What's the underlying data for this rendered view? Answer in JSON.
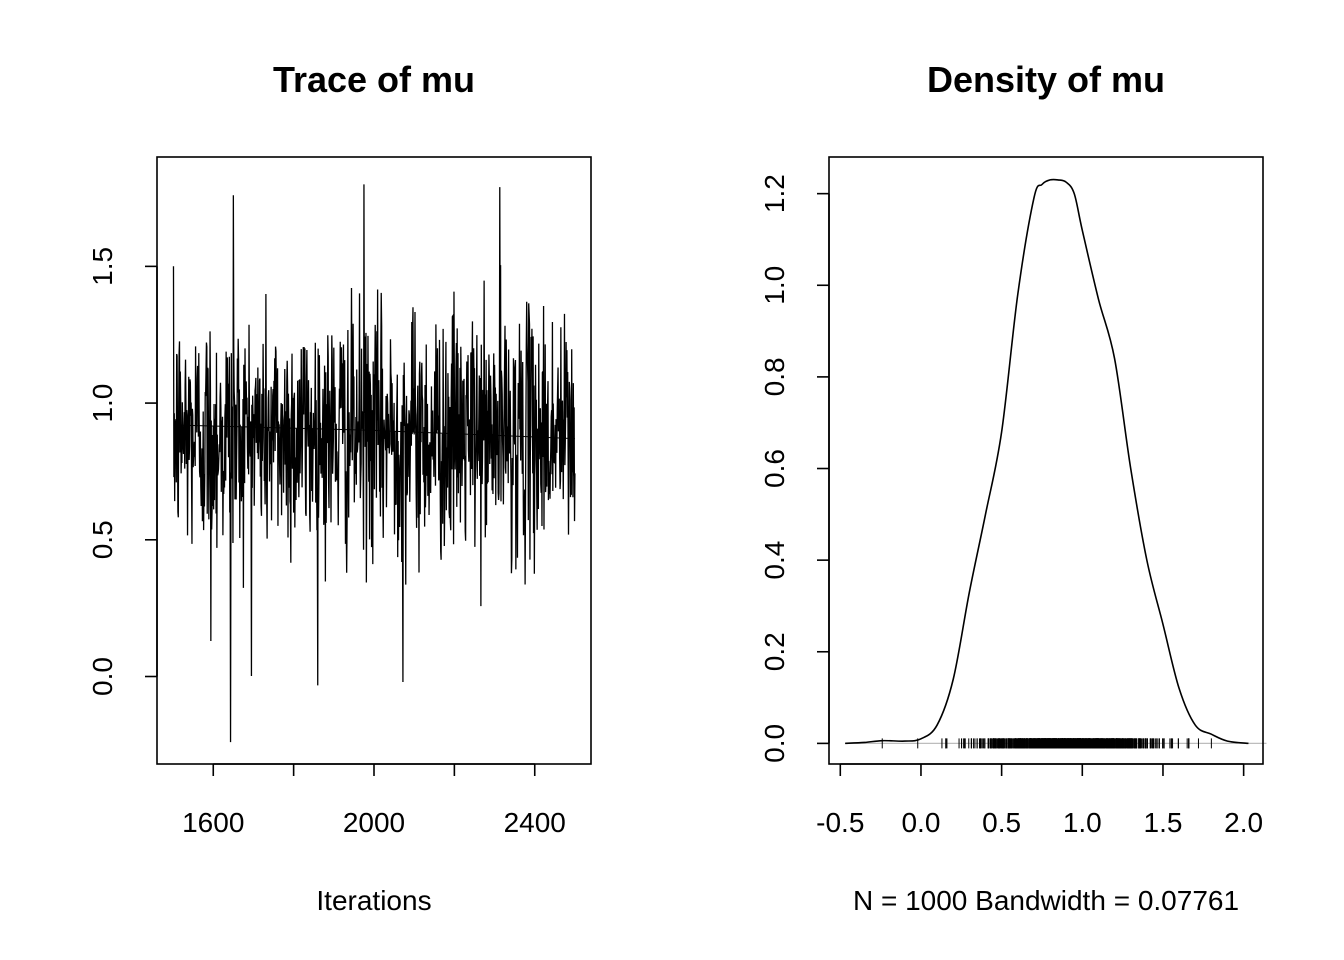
{
  "chart_data": [
    {
      "type": "line",
      "title": "Trace of mu",
      "xlabel": "Iterations",
      "ylabel": "",
      "xlim": [
        1460,
        2540
      ],
      "ylim": [
        -0.32,
        1.9
      ],
      "x_ticks": [
        1600,
        1800,
        2000,
        2200,
        2400
      ],
      "x_tick_labels": [
        "1600",
        "",
        "2000",
        "",
        "2400"
      ],
      "y_ticks": [
        0.0,
        0.5,
        1.0,
        1.5
      ],
      "y_tick_labels": [
        "0.0",
        "0.5",
        "1.0",
        "1.5"
      ],
      "grid": false,
      "series": [
        {
          "name": "",
          "iterations": [
            1501,
            2500
          ],
          "approx_mean": 0.89,
          "approx_sd": 0.22,
          "approx_min": -0.24,
          "approx_max": 1.8
        },
        {
          "name": "",
          "x": [
            1501,
            2000,
            2500
          ],
          "y": [
            0.92,
            0.9,
            0.87
          ]
        }
      ]
    },
    {
      "type": "line",
      "title": "Density of mu",
      "xlabel": "N = 1000   Bandwidth = 0.07761",
      "ylabel": "",
      "xlim": [
        -0.57,
        2.12
      ],
      "ylim": [
        -0.045,
        1.28
      ],
      "x_ticks": [
        -0.5,
        0.0,
        0.5,
        1.0,
        1.5,
        2.0
      ],
      "x_tick_labels": [
        "-0.5",
        "0.0",
        "0.5",
        "1.0",
        "1.5",
        "2.0"
      ],
      "y_ticks": [
        0.0,
        0.2,
        0.4,
        0.6,
        0.8,
        1.0,
        1.2
      ],
      "y_tick_labels": [
        "0.0",
        "0.2",
        "0.4",
        "0.6",
        "0.8",
        "1.0",
        "1.2"
      ],
      "grid": false,
      "series": [
        {
          "name": "",
          "x": [
            -0.47,
            -0.35,
            -0.24,
            -0.1,
            0.0,
            0.1,
            0.2,
            0.3,
            0.4,
            0.5,
            0.6,
            0.7,
            0.75,
            0.8,
            0.85,
            0.9,
            0.95,
            1.0,
            1.1,
            1.2,
            1.3,
            1.4,
            1.5,
            1.6,
            1.7,
            1.8,
            1.9,
            2.03
          ],
          "y": [
            0.0,
            0.002,
            0.006,
            0.005,
            0.01,
            0.04,
            0.14,
            0.33,
            0.5,
            0.68,
            0.98,
            1.19,
            1.22,
            1.23,
            1.23,
            1.225,
            1.2,
            1.12,
            0.97,
            0.84,
            0.6,
            0.4,
            0.26,
            0.12,
            0.04,
            0.02,
            0.005,
            0.0
          ]
        }
      ],
      "rug": {
        "sample_size": 1000,
        "min": -0.24,
        "max": 1.8
      }
    }
  ]
}
